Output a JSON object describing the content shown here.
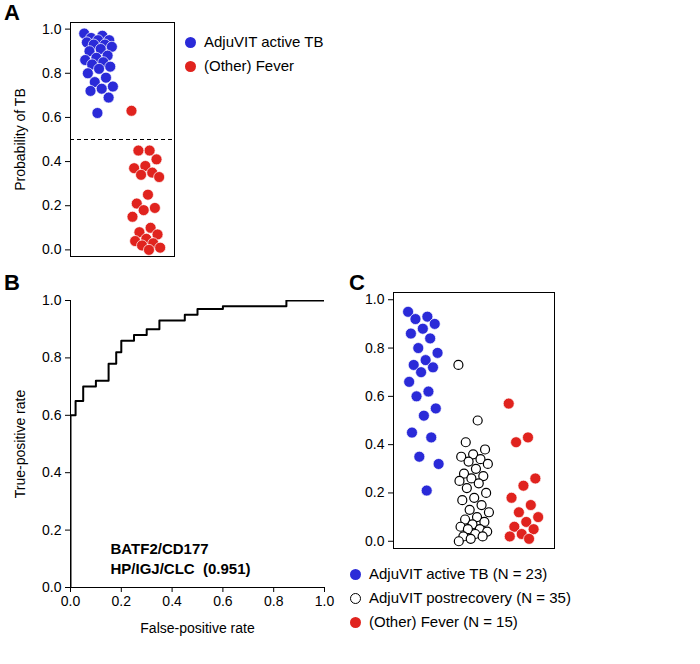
{
  "chart_data": [
    {
      "type": "scatter",
      "title": "A",
      "y_label": "Probability of TB",
      "ylim": [
        -0.03,
        1.03
      ],
      "yticks": [
        {
          "value": 0,
          "label": "0.0"
        },
        {
          "value": 0.2,
          "label": "0.2"
        },
        {
          "value": 0.4,
          "label": "0.4"
        },
        {
          "value": 0.6,
          "label": "0.6"
        },
        {
          "value": 0.8,
          "label": "0.8"
        },
        {
          "value": 1,
          "label": "1.0"
        }
      ],
      "reference_line": {
        "y": 0.5,
        "line_style": "dashed"
      },
      "legend": "right",
      "series": [
        {
          "name": "AdjuVIT active TB",
          "color": "#2a2ad8",
          "marker": "circle",
          "values": [
            0.98,
            0.97,
            0.96,
            0.95,
            0.95,
            0.94,
            0.93,
            0.93,
            0.92,
            0.91,
            0.9,
            0.88,
            0.87,
            0.86,
            0.85,
            0.84,
            0.83,
            0.82,
            0.8,
            0.78,
            0.76,
            0.74,
            0.73,
            0.72,
            0.69,
            0.62
          ]
        },
        {
          "name": "(Other) Fever",
          "color": "#e0231e",
          "marker": "circle",
          "values": [
            0.63,
            0.45,
            0.45,
            0.41,
            0.38,
            0.37,
            0.35,
            0.34,
            0.33,
            0.25,
            0.21,
            0.19,
            0.18,
            0.15,
            0.1,
            0.08,
            0.07,
            0.05,
            0.04,
            0.03,
            0.02,
            0.01,
            0.0
          ]
        }
      ]
    },
    {
      "type": "line",
      "title": "B",
      "x_label": "False-positive rate",
      "y_label": "True-positive rate",
      "xlim": [
        0,
        1
      ],
      "ylim": [
        0,
        1
      ],
      "xticks": [
        {
          "value": 0,
          "label": "0.0"
        },
        {
          "value": 0.2,
          "label": "0.2"
        },
        {
          "value": 0.4,
          "label": "0.4"
        },
        {
          "value": 0.6,
          "label": "0.6"
        },
        {
          "value": 0.8,
          "label": "0.8"
        },
        {
          "value": 1,
          "label": "1.0"
        }
      ],
      "yticks": [
        {
          "value": 0,
          "label": "0.0"
        },
        {
          "value": 0.2,
          "label": "0.2"
        },
        {
          "value": 0.4,
          "label": "0.4"
        },
        {
          "value": 0.6,
          "label": "0.6"
        },
        {
          "value": 0.8,
          "label": "0.8"
        },
        {
          "value": 1,
          "label": "1.0"
        }
      ],
      "color": "#000000",
      "annotations": [
        "BATF2/CD177",
        "HP/IGJ/CLC  (0.951)"
      ],
      "x": [
        0,
        0,
        0.02,
        0.02,
        0.05,
        0.05,
        0.1,
        0.1,
        0.15,
        0.15,
        0.18,
        0.18,
        0.2,
        0.2,
        0.25,
        0.25,
        0.3,
        0.3,
        0.35,
        0.35,
        0.45,
        0.45,
        0.5,
        0.5,
        0.6,
        0.6,
        0.85,
        0.85,
        1.0
      ],
      "values": [
        0,
        0.6,
        0.6,
        0.65,
        0.65,
        0.7,
        0.7,
        0.72,
        0.72,
        0.78,
        0.78,
        0.82,
        0.82,
        0.86,
        0.86,
        0.88,
        0.88,
        0.9,
        0.9,
        0.93,
        0.93,
        0.95,
        0.95,
        0.97,
        0.97,
        0.98,
        0.98,
        1.0,
        1.0
      ]
    },
    {
      "type": "scatter",
      "title": "C",
      "ylim": [
        -0.03,
        1.03
      ],
      "yticks": [
        {
          "value": 0,
          "label": "0.0"
        },
        {
          "value": 0.2,
          "label": "0.2"
        },
        {
          "value": 0.4,
          "label": "0.4"
        },
        {
          "value": 0.6,
          "label": "0.6"
        },
        {
          "value": 0.8,
          "label": "0.8"
        },
        {
          "value": 1,
          "label": "1.0"
        }
      ],
      "legend": "bottom",
      "series": [
        {
          "name": "AdjuVIT active TB (N = 23)",
          "color": "#2a2ad8",
          "marker": "circle",
          "values": [
            0.95,
            0.93,
            0.92,
            0.9,
            0.88,
            0.86,
            0.84,
            0.8,
            0.78,
            0.75,
            0.73,
            0.72,
            0.7,
            0.66,
            0.62,
            0.6,
            0.55,
            0.52,
            0.45,
            0.43,
            0.35,
            0.32,
            0.21
          ]
        },
        {
          "name": "AdjuVIT postrecovery (N = 35)",
          "color": "#000000",
          "marker": "open",
          "values": [
            0.73,
            0.5,
            0.41,
            0.38,
            0.36,
            0.35,
            0.34,
            0.33,
            0.32,
            0.3,
            0.28,
            0.27,
            0.26,
            0.25,
            0.24,
            0.22,
            0.2,
            0.18,
            0.17,
            0.15,
            0.13,
            0.12,
            0.1,
            0.09,
            0.08,
            0.07,
            0.06,
            0.05,
            0.05,
            0.04,
            0.03,
            0.02,
            0.02,
            0.01,
            0.0
          ]
        },
        {
          "name": "(Other) Fever (N = 15)",
          "color": "#e0231e",
          "marker": "circle",
          "values": [
            0.57,
            0.43,
            0.41,
            0.26,
            0.23,
            0.18,
            0.15,
            0.12,
            0.1,
            0.08,
            0.06,
            0.05,
            0.03,
            0.02,
            0.01
          ]
        }
      ]
    }
  ]
}
